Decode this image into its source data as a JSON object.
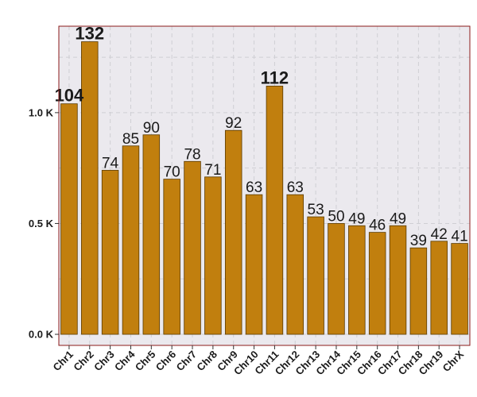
{
  "chart_data": {
    "type": "bar",
    "title": "",
    "xlabel": "",
    "ylabel": "",
    "categories": [
      "Chr1",
      "Chr2",
      "Chr3",
      "Chr4",
      "Chr5",
      "Chr6",
      "Chr7",
      "Chr8",
      "Chr9",
      "Chr10",
      "Chr11",
      "Chr12",
      "Chr13",
      "Chr14",
      "Chr15",
      "Chr16",
      "Chr17",
      "Chr18",
      "Chr19",
      "ChrX"
    ],
    "values": [
      1040,
      1320,
      740,
      850,
      900,
      700,
      780,
      710,
      920,
      630,
      1120,
      630,
      530,
      500,
      490,
      460,
      490,
      390,
      420,
      410
    ],
    "labels": [
      "104",
      "132",
      "74",
      "85",
      "90",
      "70",
      "78",
      "71",
      "92",
      "63",
      "112",
      "63",
      "53",
      "50",
      "49",
      "46",
      "49",
      "39",
      "42",
      "41"
    ],
    "highlighted": [
      "Chr1",
      "Chr2",
      "Chr11"
    ],
    "ylim": [
      -50,
      1390
    ],
    "yticks": [
      0,
      500,
      1000
    ],
    "ytick_labels": [
      "0.0 K",
      "0.5 K",
      "1.0 K"
    ],
    "grid": true,
    "legend": "none",
    "colors": {
      "bar_fill": "#c17f0e",
      "bar_stroke": "#5a3a00",
      "highlight_label": "#b22222",
      "label": "#1a1a1a",
      "panel_bg": "#ebe9ee",
      "panel_border": "#8b1a1a",
      "grid": "#cfcfd4"
    }
  }
}
